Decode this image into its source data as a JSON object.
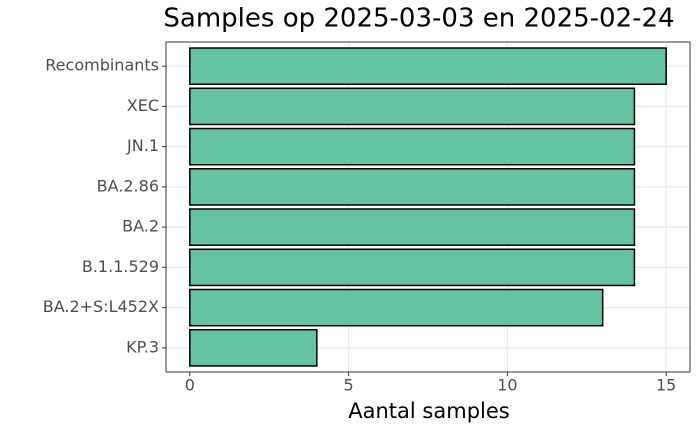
{
  "chart_data": {
    "type": "bar",
    "orientation": "horizontal",
    "title": "Samples op 2025-03-03 en 2025-02-24",
    "x_label": "Aantal samples",
    "categories": [
      "Recombinants",
      "XEC",
      "JN.1",
      "BA.2.86",
      "BA.2",
      "B.1.1.529",
      "BA.2+S:L452X",
      "KP.3"
    ],
    "values": [
      15,
      14,
      14,
      14,
      14,
      14,
      13,
      4
    ],
    "color": "#66c2a5",
    "xlim": [
      -0.75,
      15.75
    ],
    "xticks": [
      0,
      5,
      10,
      15
    ],
    "grid": true
  }
}
